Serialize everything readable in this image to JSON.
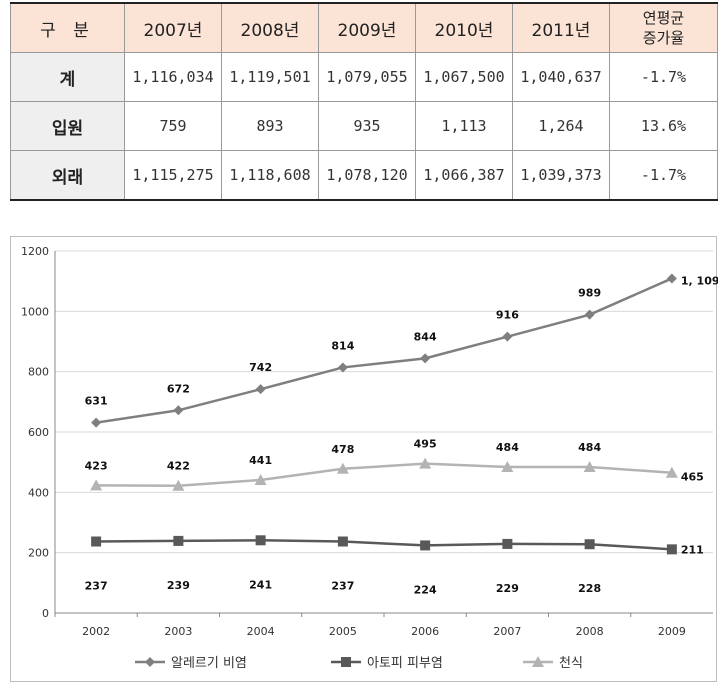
{
  "table": {
    "header": {
      "corner": "구 분",
      "years": [
        "2007년",
        "2008년",
        "2009년",
        "2010년",
        "2011년"
      ],
      "growth_line1": "연평균",
      "growth_line2": "증가율"
    },
    "rows": [
      {
        "label": "계",
        "values": [
          "1,116,034",
          "1,119,501",
          "1,079,055",
          "1,067,500",
          "1,040,637"
        ],
        "growth": "-1.7%"
      },
      {
        "label": "입원",
        "values": [
          "759",
          "893",
          "935",
          "1,113",
          "1,264"
        ],
        "growth": "13.6%"
      },
      {
        "label": "외래",
        "values": [
          "1,115,275",
          "1,118,608",
          "1,078,120",
          "1,066,387",
          "1,039,373"
        ],
        "growth": "-1.7%"
      }
    ]
  },
  "chart_data": {
    "type": "line",
    "categories": [
      "2002",
      "2003",
      "2004",
      "2005",
      "2006",
      "2007",
      "2008",
      "2009"
    ],
    "ylim": [
      0,
      1200
    ],
    "yticks": [
      "0",
      "200",
      "400",
      "600",
      "800",
      "1000",
      "1200"
    ],
    "grid": true,
    "legend_position": "bottom",
    "series": [
      {
        "name": "알레르기 비염",
        "marker": "diamond",
        "color": "#7f7f7f",
        "values": [
          631,
          672,
          742,
          814,
          844,
          916,
          989,
          1109
        ],
        "labels": [
          "631",
          "672",
          "742",
          "814",
          "844",
          "916",
          "989",
          "1, 109"
        ]
      },
      {
        "name": "아토피 피부염",
        "marker": "square",
        "color": "#595959",
        "values": [
          237,
          239,
          241,
          237,
          224,
          229,
          228,
          211
        ],
        "labels": [
          "237",
          "239",
          "241",
          "237",
          "224",
          "229",
          "228",
          "211"
        ]
      },
      {
        "name": "천식",
        "marker": "triangle",
        "color": "#b3b3b3",
        "values": [
          423,
          422,
          441,
          478,
          495,
          484,
          484,
          465
        ],
        "labels": [
          "423",
          "422",
          "441",
          "478",
          "495",
          "484",
          "484",
          "465"
        ]
      }
    ]
  }
}
